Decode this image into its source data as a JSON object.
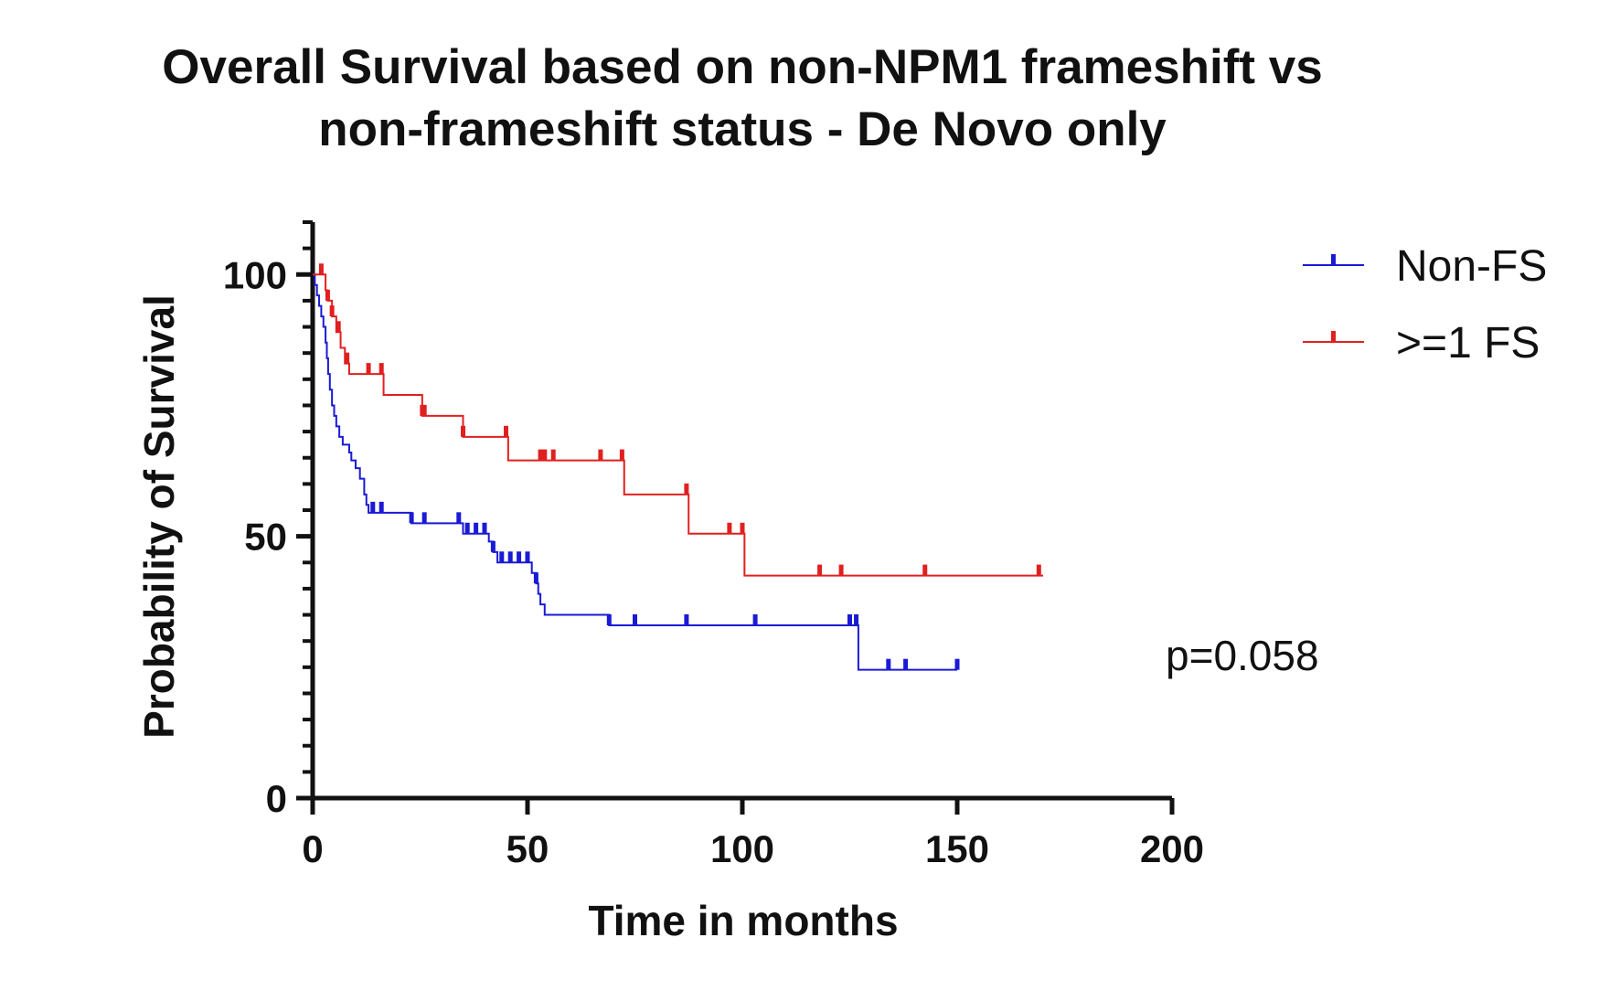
{
  "chart_data": {
    "type": "line",
    "title_lines": [
      "Overall Survival based on non-NPM1 frameshift vs",
      "non-frameshift status - De Novo only"
    ],
    "xlabel": "Time in months",
    "ylabel": "Probability of Survival",
    "xlim": [
      0,
      200
    ],
    "ylim": [
      0,
      110
    ],
    "x_ticks": [
      0,
      50,
      100,
      150,
      200
    ],
    "y_ticks": [
      0,
      50,
      100
    ],
    "grid": false,
    "legend_position": "top-right",
    "annotation": "p=0.058",
    "series": [
      {
        "name": "Non-FS",
        "color": "#1a1ad6",
        "steps": [
          [
            0,
            100
          ],
          [
            0.5,
            98
          ],
          [
            1,
            96
          ],
          [
            1.5,
            94
          ],
          [
            2,
            92
          ],
          [
            2.5,
            90
          ],
          [
            3,
            87
          ],
          [
            3.3,
            84
          ],
          [
            3.6,
            81
          ],
          [
            4,
            78
          ],
          [
            4.5,
            75
          ],
          [
            5,
            73
          ],
          [
            5.5,
            71
          ],
          [
            6.2,
            69
          ],
          [
            7,
            67.5
          ],
          [
            8,
            67.5
          ],
          [
            8.5,
            66
          ],
          [
            9,
            64.5
          ],
          [
            10,
            63
          ],
          [
            11,
            61
          ],
          [
            12,
            58
          ],
          [
            12.5,
            56
          ],
          [
            13,
            54.5
          ],
          [
            22,
            54.5
          ],
          [
            23,
            52.5
          ],
          [
            34,
            52.5
          ],
          [
            35,
            50.5
          ],
          [
            40,
            50.5
          ],
          [
            41,
            49
          ],
          [
            42,
            47
          ],
          [
            43,
            45
          ],
          [
            50,
            45
          ],
          [
            51,
            43
          ],
          [
            52,
            41
          ],
          [
            52.5,
            39
          ],
          [
            53,
            37
          ],
          [
            54,
            35
          ],
          [
            68,
            35
          ],
          [
            69,
            33
          ],
          [
            126,
            33
          ],
          [
            127,
            24.5
          ],
          [
            150,
            24.5
          ]
        ],
        "censor_x": [
          14,
          16,
          23,
          26,
          34,
          36,
          38,
          40,
          42,
          44,
          46,
          48,
          50,
          52,
          69,
          75,
          87,
          103,
          125,
          126.5,
          134,
          138,
          150
        ]
      },
      {
        "name": ">=1 FS",
        "color": "#e02020",
        "steps": [
          [
            0,
            100
          ],
          [
            2.5,
            100
          ],
          [
            3,
            97
          ],
          [
            3.5,
            95
          ],
          [
            4.5,
            92
          ],
          [
            5.5,
            89
          ],
          [
            6.5,
            86
          ],
          [
            7.5,
            83
          ],
          [
            8.5,
            81
          ],
          [
            16,
            81
          ],
          [
            16.5,
            77
          ],
          [
            25,
            77
          ],
          [
            25.5,
            73
          ],
          [
            34,
            73
          ],
          [
            35,
            69
          ],
          [
            45,
            69
          ],
          [
            45.5,
            64.5
          ],
          [
            72,
            64.5
          ],
          [
            72.5,
            58
          ],
          [
            87,
            58
          ],
          [
            87.5,
            50.5
          ],
          [
            100,
            50.5
          ],
          [
            100.5,
            42.5
          ],
          [
            170,
            42.5
          ]
        ],
        "censor_x": [
          2,
          3.5,
          4.5,
          6,
          8,
          13,
          16,
          25.5,
          26,
          35,
          45,
          53,
          54,
          56,
          67,
          72,
          87,
          97,
          100,
          118,
          123,
          142.5,
          169
        ]
      }
    ]
  }
}
